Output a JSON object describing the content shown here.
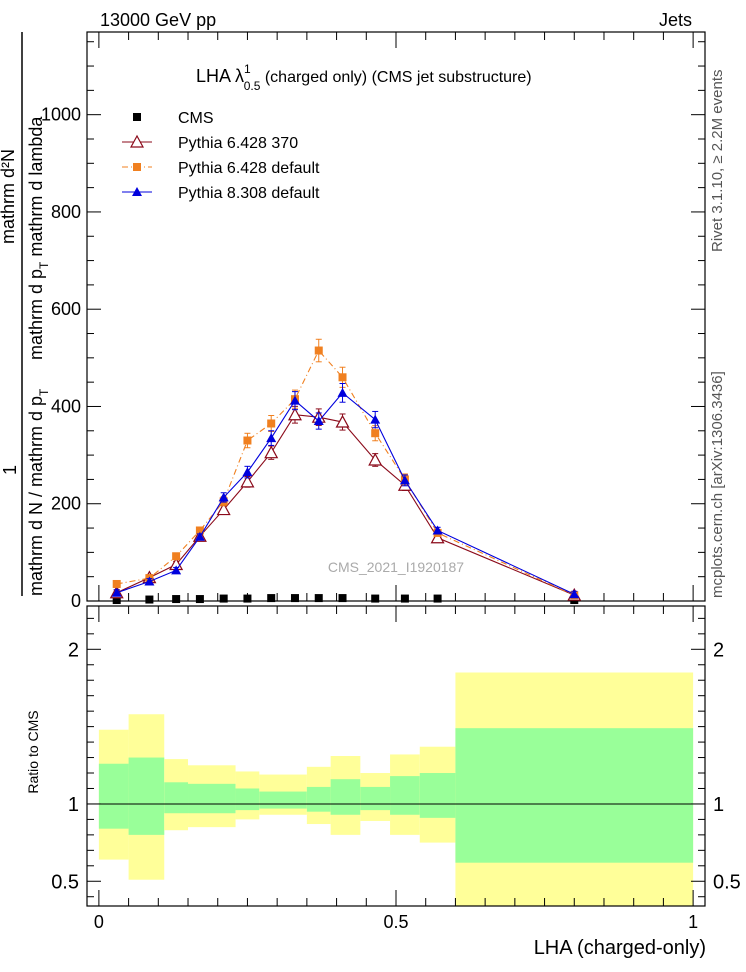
{
  "header": {
    "energy_label": "13000 GeV pp",
    "process_label": "Jets"
  },
  "side": {
    "rivet_label": "Rivet 3.1.10, ≥ 2.2M events",
    "mcplots_label": "mcplots.cern.ch [arXiv:1306.3436]"
  },
  "watermark": "CMS_2021_I1920187",
  "chart_data": [
    {
      "type": "line",
      "title_main": "LHA λ",
      "title_sup": "1",
      "title_sub": "0.5",
      "title_rest": " (charged only) (CMS jet substructure)",
      "ylabel_top": "1",
      "ylabel_bottom": "mathrm d N / mathrm d p",
      "ylabel_bottom_sub": "T",
      "ylabel_num": "mathrm d²N",
      "ylabel_den": "mathrm d p",
      "ylabel_den_sub": "T",
      "ylabel_den_rest": " mathrm d lambda",
      "xlim": [
        -0.02,
        1.02
      ],
      "ylim": [
        0,
        1170
      ],
      "yticks": [
        0,
        200,
        400,
        600,
        800,
        1000
      ],
      "yticklabels": [
        "0",
        "200",
        "400",
        "600",
        "800",
        "1000"
      ],
      "legend": "top-left",
      "series": [
        {
          "name": "CMS",
          "color": "#000000",
          "marker": "square",
          "x": [
            0.03,
            0.085,
            0.13,
            0.17,
            0.21,
            0.25,
            0.29,
            0.33,
            0.37,
            0.41,
            0.465,
            0.515,
            0.57,
            0.8
          ],
          "y": [
            2,
            3,
            4,
            4,
            5,
            5,
            6,
            6,
            6,
            6,
            5,
            5,
            5,
            2
          ]
        },
        {
          "name": "Pythia 6.428 370",
          "color": "#8b0a1a",
          "marker": "open-triangle",
          "x": [
            0.03,
            0.085,
            0.13,
            0.17,
            0.21,
            0.25,
            0.29,
            0.33,
            0.37,
            0.41,
            0.465,
            0.515,
            0.57,
            0.8
          ],
          "y": [
            17,
            48,
            75,
            133,
            188,
            245,
            305,
            383,
            378,
            368,
            290,
            238,
            130,
            12
          ]
        },
        {
          "name": "Pythia 6.428 default",
          "color": "#f08020",
          "marker": "square",
          "x": [
            0.03,
            0.085,
            0.13,
            0.17,
            0.21,
            0.25,
            0.29,
            0.33,
            0.37,
            0.41,
            0.465,
            0.515,
            0.57,
            0.8
          ],
          "y": [
            35,
            47,
            92,
            145,
            205,
            330,
            365,
            415,
            515,
            460,
            345,
            250,
            140,
            12
          ]
        },
        {
          "name": "Pythia 8.308 default",
          "color": "#0000dd",
          "marker": "filled-triangle",
          "x": [
            0.03,
            0.085,
            0.13,
            0.17,
            0.21,
            0.25,
            0.29,
            0.33,
            0.37,
            0.41,
            0.465,
            0.515,
            0.57,
            0.8
          ],
          "y": [
            17,
            40,
            63,
            132,
            213,
            265,
            335,
            412,
            370,
            428,
            373,
            248,
            145,
            14
          ]
        }
      ]
    },
    {
      "type": "area",
      "ylabel": "Ratio to CMS",
      "xlabel": "LHA (charged-only)",
      "xlim": [
        -0.02,
        1.02
      ],
      "ylim": [
        0.34,
        2.28
      ],
      "yticks": [
        0.5,
        1,
        2
      ],
      "yticklabels": [
        "0.5",
        "1",
        "2"
      ],
      "xticks": [
        0,
        0.5,
        1
      ],
      "xticklabels": [
        "0",
        "0.5",
        "1"
      ],
      "bins": [
        {
          "lo": 0.0,
          "hi": 0.05,
          "stat_lo": 0.84,
          "stat_hi": 1.26,
          "tot_lo": 0.64,
          "tot_hi": 1.48
        },
        {
          "lo": 0.05,
          "hi": 0.11,
          "stat_lo": 0.8,
          "stat_hi": 1.3,
          "tot_lo": 0.51,
          "tot_hi": 1.58
        },
        {
          "lo": 0.11,
          "hi": 0.15,
          "stat_lo": 0.94,
          "stat_hi": 1.14,
          "tot_lo": 0.83,
          "tot_hi": 1.29
        },
        {
          "lo": 0.15,
          "hi": 0.23,
          "stat_lo": 0.94,
          "stat_hi": 1.13,
          "tot_lo": 0.85,
          "tot_hi": 1.25
        },
        {
          "lo": 0.23,
          "hi": 0.27,
          "stat_lo": 0.96,
          "stat_hi": 1.1,
          "tot_lo": 0.9,
          "tot_hi": 1.21
        },
        {
          "lo": 0.27,
          "hi": 0.35,
          "stat_lo": 0.97,
          "stat_hi": 1.08,
          "tot_lo": 0.93,
          "tot_hi": 1.19
        },
        {
          "lo": 0.35,
          "hi": 0.39,
          "stat_lo": 0.95,
          "stat_hi": 1.11,
          "tot_lo": 0.87,
          "tot_hi": 1.24
        },
        {
          "lo": 0.39,
          "hi": 0.44,
          "stat_lo": 0.93,
          "stat_hi": 1.16,
          "tot_lo": 0.8,
          "tot_hi": 1.31
        },
        {
          "lo": 0.44,
          "hi": 0.49,
          "stat_lo": 0.96,
          "stat_hi": 1.11,
          "tot_lo": 0.89,
          "tot_hi": 1.2
        },
        {
          "lo": 0.49,
          "hi": 0.54,
          "stat_lo": 0.93,
          "stat_hi": 1.18,
          "tot_lo": 0.8,
          "tot_hi": 1.32
        },
        {
          "lo": 0.54,
          "hi": 0.6,
          "stat_lo": 0.91,
          "stat_hi": 1.2,
          "tot_lo": 0.75,
          "tot_hi": 1.37
        },
        {
          "lo": 0.6,
          "hi": 1.0,
          "stat_lo": 0.62,
          "stat_hi": 1.49,
          "tot_lo": 0.34,
          "tot_hi": 1.85
        }
      ]
    }
  ]
}
